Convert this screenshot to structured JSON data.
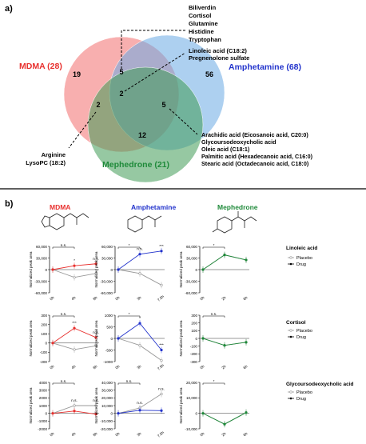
{
  "panel_a": {
    "label": "a)",
    "sets": {
      "mdma": {
        "name": "MDMA (28)",
        "color": "#e8312f",
        "fill": "#f26d6d"
      },
      "amph": {
        "name": "Amphetamine (68)",
        "color": "#2233cc",
        "fill": "#6aa9e3"
      },
      "meph": {
        "name": "Mephedrone (21)",
        "color": "#1f8a3a",
        "fill": "#3f9a55"
      }
    },
    "counts": {
      "mdma_only": "19",
      "amph_only": "56",
      "meph_only": "12",
      "mdma_amph": "5",
      "mdma_meph": "2",
      "amph_meph": "5",
      "all": "2"
    },
    "notes": {
      "mdma_amph": [
        "Biliverdin",
        "Cortisol",
        "Glutamine",
        "Histidine",
        "Tryptophan"
      ],
      "all": [
        "Linoleic acid (C18:2)",
        "Pregnenolone sulfate"
      ],
      "amph_meph": [
        "Arachidic acid (Eicosanoic acid, C20:0)",
        "Glycoursodeoxycholic acid",
        "Oleic acid (C18:1)",
        "Palmitic acid (Hexadecanoic acid, C16:0)",
        "Stearic acid (Octadecanoic acid, C18:0)"
      ],
      "mdma_meph": [
        "Arginine",
        "LysoPC (18:2)"
      ]
    }
  },
  "panel_b": {
    "label": "b)",
    "columns": [
      {
        "title": "MDMA",
        "color": "#e8312f"
      },
      {
        "title": "Amphetamine",
        "color": "#2233cc"
      },
      {
        "title": "Mephedrone",
        "color": "#1f8a3a"
      }
    ],
    "rows": [
      {
        "title": "Linoleic acid",
        "ylabel": "Normalized peak area"
      },
      {
        "title": "Cortisol",
        "ylabel": "Normalized peak area"
      },
      {
        "title": "Glycoursodeoxycholic acid",
        "ylabel": "Normalized peak area"
      }
    ],
    "legend": {
      "placebo": "Placebo",
      "drug": "Drug"
    },
    "sig": {
      "ns": "n.s.",
      "star": "*",
      "three": "***"
    }
  },
  "chart_data": [
    {
      "type": "line",
      "title": "Linoleic acid",
      "drug": "MDMA",
      "x": [
        "0h",
        "4h",
        "8h"
      ],
      "ylim": [
        -60000,
        60000
      ],
      "yticks": [
        "60,000",
        "30,000",
        "0",
        "-30,000",
        "-60,000"
      ],
      "series": [
        {
          "name": "Placebo",
          "values": [
            0,
            -20000,
            -10000
          ]
        },
        {
          "name": "Drug",
          "values": [
            0,
            10000,
            15000
          ]
        }
      ]
    },
    {
      "type": "line",
      "title": "Linoleic acid",
      "drug": "Amphetamine",
      "x": [
        "0h",
        "3h",
        "7.5h"
      ],
      "ylim": [
        -60000,
        60000
      ],
      "yticks": [
        "60,000",
        "30,000",
        "0",
        "-30,000",
        "-60,000"
      ],
      "series": [
        {
          "name": "Placebo",
          "values": [
            0,
            -10000,
            -40000
          ]
        },
        {
          "name": "Drug",
          "values": [
            0,
            40000,
            48000
          ]
        }
      ]
    },
    {
      "type": "line",
      "title": "Linoleic acid",
      "drug": "Mephedrone",
      "x": [
        "0h",
        "2h",
        "6h"
      ],
      "ylim": [
        -60000,
        60000
      ],
      "yticks": [
        "60,000",
        "30,000",
        "0",
        "-30,000",
        "-60,000"
      ],
      "series": [
        {
          "name": "Placebo",
          "values": [
            0,
            38000,
            25000
          ]
        },
        {
          "name": "Drug",
          "values": [
            0,
            38000,
            25000
          ]
        }
      ]
    },
    {
      "type": "line",
      "title": "Cortisol",
      "drug": "MDMA",
      "x": [
        "0h",
        "4h",
        "8h"
      ],
      "ylim": [
        -200,
        300
      ],
      "yticks": [
        "300",
        "200",
        "100",
        "0",
        "-100",
        "-200"
      ],
      "series": [
        {
          "name": "Placebo",
          "values": [
            0,
            -70,
            -30
          ]
        },
        {
          "name": "Drug",
          "values": [
            0,
            160,
            60
          ]
        }
      ]
    },
    {
      "type": "line",
      "title": "Cortisol",
      "drug": "Amphetamine",
      "x": [
        "0h",
        "3h",
        "7.5h"
      ],
      "ylim": [
        -1000,
        1000
      ],
      "yticks": [
        "1000",
        "500",
        "0",
        "-500",
        "-1000"
      ],
      "series": [
        {
          "name": "Placebo",
          "values": [
            0,
            -300,
            -950
          ]
        },
        {
          "name": "Drug",
          "values": [
            0,
            650,
            -500
          ]
        }
      ]
    },
    {
      "type": "line",
      "title": "Cortisol",
      "drug": "Mephedrone",
      "x": [
        "0h",
        "2h",
        "6h"
      ],
      "ylim": [
        -300,
        300
      ],
      "yticks": [
        "300",
        "200",
        "100",
        "0",
        "-100",
        "-200",
        "-300"
      ],
      "series": [
        {
          "name": "Placebo",
          "values": [
            0,
            -90,
            -50
          ]
        },
        {
          "name": "Drug",
          "values": [
            0,
            -90,
            -50
          ]
        }
      ]
    },
    {
      "type": "line",
      "title": "Glycoursodeoxycholic acid",
      "drug": "MDMA",
      "x": [
        "0h",
        "4h",
        "8h"
      ],
      "ylim": [
        -2000,
        4000
      ],
      "yticks": [
        "4000",
        "3000",
        "2000",
        "1000",
        "0",
        "-1000",
        "-2000"
      ],
      "series": [
        {
          "name": "Placebo",
          "values": [
            0,
            1000,
            1000
          ]
        },
        {
          "name": "Drug",
          "values": [
            0,
            300,
            -100
          ]
        }
      ]
    },
    {
      "type": "line",
      "title": "Glycoursodeoxycholic acid",
      "drug": "Amphetamine",
      "x": [
        "0h",
        "3h",
        "7.5h"
      ],
      "ylim": [
        -20000,
        40000
      ],
      "yticks": [
        "40,000",
        "30,000",
        "20,000",
        "10,000",
        "0",
        "-10,000",
        "-20,000"
      ],
      "series": [
        {
          "name": "Placebo",
          "values": [
            0,
            7000,
            25000
          ]
        },
        {
          "name": "Drug",
          "values": [
            0,
            4000,
            3500
          ]
        }
      ]
    },
    {
      "type": "line",
      "title": "Glycoursodeoxycholic acid",
      "drug": "Mephedrone",
      "x": [
        "0h",
        "2h",
        "6h"
      ],
      "ylim": [
        -10000,
        20000
      ],
      "yticks": [
        "20,000",
        "10,000",
        "0",
        "-10,000"
      ],
      "series": [
        {
          "name": "Placebo",
          "values": [
            0,
            -7000,
            500
          ]
        },
        {
          "name": "Drug",
          "values": [
            0,
            -7000,
            500
          ]
        }
      ]
    }
  ]
}
